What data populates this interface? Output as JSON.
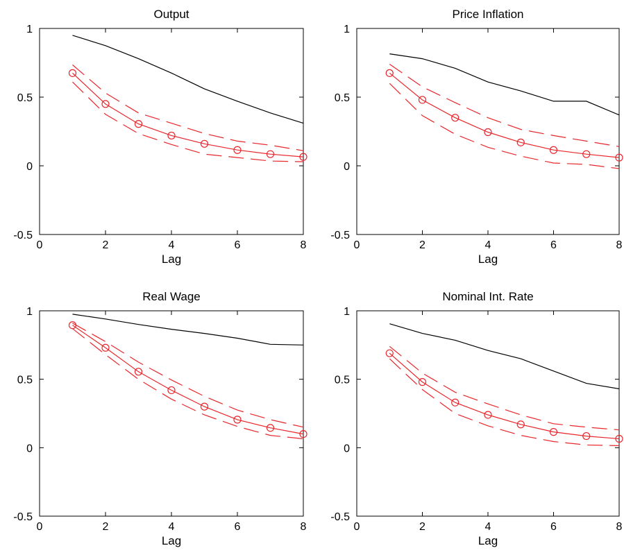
{
  "chart_data": [
    {
      "type": "line",
      "title": "Output",
      "xlabel": "Lag",
      "ylabel": "",
      "xlim": [
        0,
        8
      ],
      "ylim": [
        -0.5,
        1
      ],
      "xticks": [
        "0",
        "2",
        "4",
        "6",
        "8"
      ],
      "yticks": [
        "-0.5",
        "0",
        "0.5",
        "1"
      ],
      "x": [
        1,
        2,
        3,
        4,
        5,
        6,
        7,
        8
      ],
      "series": [
        {
          "style": "solid",
          "color": "#000000",
          "values": [
            0.95,
            0.875,
            0.78,
            0.675,
            0.56,
            0.47,
            0.385,
            0.31
          ]
        },
        {
          "style": "solid-circles",
          "color": "#e8262b",
          "values": [
            0.675,
            0.45,
            0.305,
            0.22,
            0.16,
            0.115,
            0.085,
            0.065
          ]
        },
        {
          "style": "dashed",
          "color": "#e8262b",
          "values": [
            0.735,
            0.53,
            0.385,
            0.31,
            0.235,
            0.18,
            0.15,
            0.11
          ]
        },
        {
          "style": "dashed",
          "color": "#e8262b",
          "values": [
            0.61,
            0.375,
            0.235,
            0.155,
            0.085,
            0.06,
            0.035,
            0.03
          ]
        }
      ]
    },
    {
      "type": "line",
      "title": "Price Inflation",
      "xlabel": "Lag",
      "ylabel": "",
      "xlim": [
        0,
        8
      ],
      "ylim": [
        -0.5,
        1
      ],
      "xticks": [
        "0",
        "2",
        "4",
        "6",
        "8"
      ],
      "yticks": [
        "-0.5",
        "0",
        "0.5",
        "1"
      ],
      "x": [
        1,
        2,
        3,
        4,
        5,
        6,
        7,
        8
      ],
      "series": [
        {
          "style": "solid",
          "color": "#000000",
          "values": [
            0.815,
            0.78,
            0.71,
            0.61,
            0.545,
            0.47,
            0.47,
            0.37
          ]
        },
        {
          "style": "solid-circles",
          "color": "#e8262b",
          "values": [
            0.675,
            0.48,
            0.35,
            0.245,
            0.17,
            0.115,
            0.085,
            0.06
          ]
        },
        {
          "style": "dashed",
          "color": "#e8262b",
          "values": [
            0.74,
            0.575,
            0.46,
            0.35,
            0.265,
            0.22,
            0.18,
            0.14
          ]
        },
        {
          "style": "dashed",
          "color": "#e8262b",
          "values": [
            0.6,
            0.365,
            0.23,
            0.135,
            0.07,
            0.02,
            0.01,
            -0.02
          ]
        }
      ]
    },
    {
      "type": "line",
      "title": "Real Wage",
      "xlabel": "Lag",
      "ylabel": "",
      "xlim": [
        0,
        8
      ],
      "ylim": [
        -0.5,
        1
      ],
      "xticks": [
        "0",
        "2",
        "4",
        "6",
        "8"
      ],
      "yticks": [
        "-0.5",
        "0",
        "0.5",
        "1"
      ],
      "x": [
        1,
        2,
        3,
        4,
        5,
        6,
        7,
        8
      ],
      "series": [
        {
          "style": "solid",
          "color": "#000000",
          "values": [
            0.975,
            0.94,
            0.9,
            0.865,
            0.835,
            0.8,
            0.755,
            0.75
          ]
        },
        {
          "style": "solid-circles",
          "color": "#e8262b",
          "values": [
            0.895,
            0.73,
            0.555,
            0.42,
            0.3,
            0.205,
            0.145,
            0.1
          ]
        },
        {
          "style": "dashed",
          "color": "#e8262b",
          "values": [
            0.91,
            0.775,
            0.625,
            0.495,
            0.375,
            0.275,
            0.205,
            0.15
          ]
        },
        {
          "style": "dashed",
          "color": "#e8262b",
          "values": [
            0.87,
            0.68,
            0.5,
            0.355,
            0.24,
            0.155,
            0.09,
            0.065
          ]
        }
      ]
    },
    {
      "type": "line",
      "title": "Nominal Int. Rate",
      "xlabel": "Lag",
      "ylabel": "",
      "xlim": [
        0,
        8
      ],
      "ylim": [
        -0.5,
        1
      ],
      "xticks": [
        "0",
        "2",
        "4",
        "6",
        "8"
      ],
      "yticks": [
        "-0.5",
        "0",
        "0.5",
        "1"
      ],
      "x": [
        1,
        2,
        3,
        4,
        5,
        6,
        7,
        8
      ],
      "series": [
        {
          "style": "solid",
          "color": "#000000",
          "values": [
            0.905,
            0.835,
            0.785,
            0.71,
            0.65,
            0.56,
            0.47,
            0.43
          ]
        },
        {
          "style": "solid-circles",
          "color": "#e8262b",
          "values": [
            0.69,
            0.48,
            0.33,
            0.24,
            0.17,
            0.115,
            0.085,
            0.065
          ]
        },
        {
          "style": "dashed",
          "color": "#e8262b",
          "values": [
            0.74,
            0.545,
            0.405,
            0.32,
            0.24,
            0.175,
            0.15,
            0.13
          ]
        },
        {
          "style": "dashed",
          "color": "#e8262b",
          "values": [
            0.65,
            0.425,
            0.25,
            0.16,
            0.09,
            0.045,
            0.02,
            0.015
          ]
        }
      ]
    }
  ]
}
